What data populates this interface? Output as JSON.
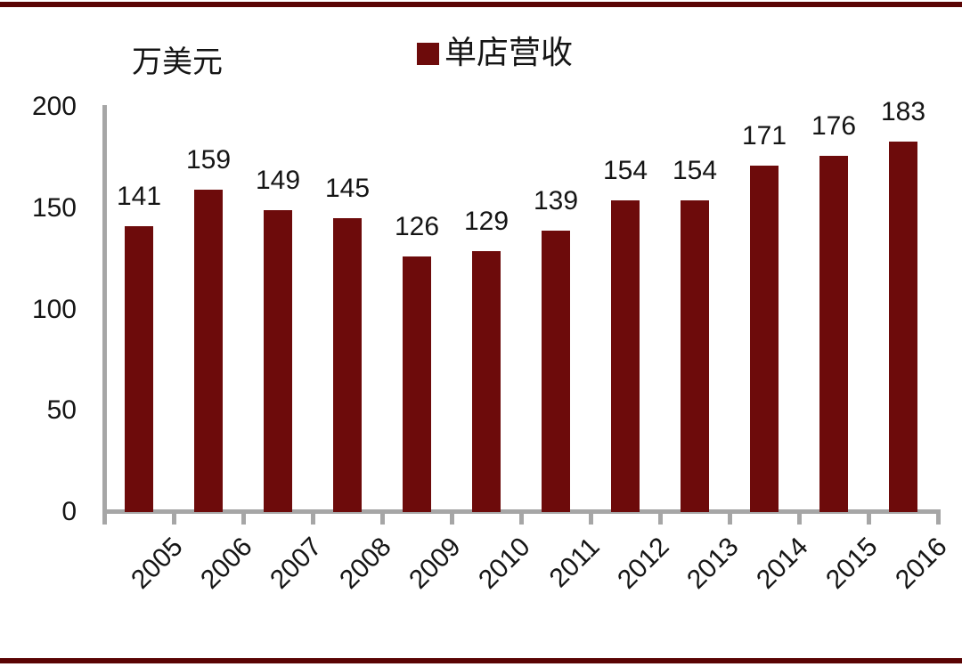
{
  "page": {
    "background": "#ffffff",
    "rule_color": "#5a0404",
    "text_color": "#151515"
  },
  "chart_data": {
    "type": "bar",
    "unit_label": "万美元",
    "legend": {
      "label": "单店营收",
      "position": "top"
    },
    "categories": [
      "2005",
      "2006",
      "2007",
      "2008",
      "2009",
      "2010",
      "2011",
      "2012",
      "2013",
      "2014",
      "2015",
      "2016"
    ],
    "series": [
      {
        "name": "单店营收",
        "color": "#6d0b0b",
        "values": [
          141,
          159,
          149,
          145,
          126,
          129,
          139,
          154,
          154,
          171,
          176,
          183
        ]
      }
    ],
    "ylim": [
      0,
      200
    ],
    "yticks": [
      0,
      50,
      100,
      150,
      200
    ],
    "bar_value_labels": true,
    "grid": false,
    "axis_color": "#a6a6a6"
  }
}
